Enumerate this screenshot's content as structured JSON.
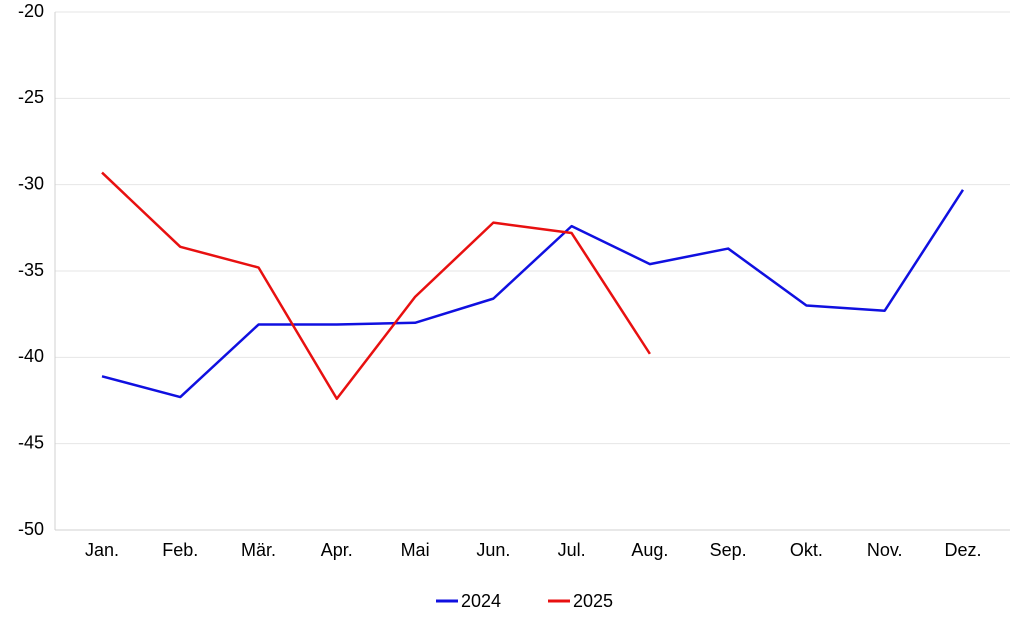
{
  "chart_data": {
    "type": "line",
    "categories": [
      "Jan.",
      "Feb.",
      "Mär.",
      "Apr.",
      "Mai",
      "Jun.",
      "Jul.",
      "Aug.",
      "Sep.",
      "Okt.",
      "Nov.",
      "Dez."
    ],
    "series": [
      {
        "name": "2024",
        "color": "#1010e0",
        "values": [
          -41.1,
          -42.3,
          -38.1,
          -38.1,
          -38.0,
          -36.6,
          -32.4,
          -34.6,
          -33.7,
          -37.0,
          -37.3,
          -30.3
        ]
      },
      {
        "name": "2025",
        "color": "#e81010",
        "values": [
          -29.3,
          -33.6,
          -34.8,
          -42.4,
          -36.5,
          -32.2,
          -32.8,
          -39.8,
          null,
          null,
          null,
          null
        ]
      }
    ],
    "ylim": [
      -50,
      -20
    ],
    "yticks": [
      -50,
      -45,
      -40,
      -35,
      -30,
      -25,
      -20
    ],
    "grid": true,
    "legend": "bottom"
  }
}
